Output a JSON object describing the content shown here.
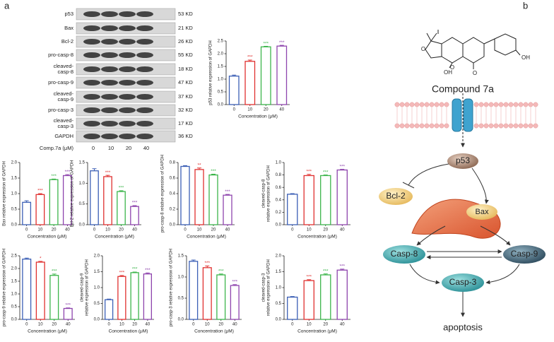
{
  "panels": {
    "a": "a",
    "b": "b"
  },
  "blot": {
    "proteins": [
      [
        "p53"
      ],
      [
        "Bax"
      ],
      [
        "Bcl-2"
      ],
      [
        "pro-casp-8"
      ],
      [
        "cleaved-",
        "casp-8"
      ],
      [
        "pro-casp-9"
      ],
      [
        "cleaved-",
        "casp-9"
      ],
      [
        "pro-casp-3"
      ],
      [
        "cleaved-",
        "casp-3"
      ],
      [
        "GAPDH"
      ]
    ],
    "sizes": [
      "53 KD",
      "21 KD",
      "26 KD",
      "55 KD",
      "18 KD",
      "47 KD",
      "37 KD",
      "32 KD",
      "17 KD",
      "36 KD"
    ],
    "treatment": "Comp.7a (μM)",
    "doses": [
      "0",
      "10",
      "20",
      "40"
    ]
  },
  "pathway": {
    "atoms": [
      "O",
      "O",
      "O",
      "OH",
      "OH"
    ],
    "compound": "Compound 7a",
    "nodes": [
      "p53",
      "Bcl-2",
      "Bax",
      "Casp-8",
      "Casp-9",
      "Casp-3",
      "apoptosis"
    ]
  },
  "chart_data": [
    {
      "type": "bar",
      "ylabel": [
        "p53 relative expression of GAPDH"
      ],
      "xlabel": "Concentration (μM)",
      "categories": [
        "0",
        "10",
        "20",
        "40"
      ],
      "values": [
        1.12,
        1.7,
        2.27,
        2.3
      ],
      "errors": [
        0.04,
        0.05,
        0.02,
        0.03
      ],
      "annotations": [
        null,
        "***",
        "***",
        "***"
      ],
      "colors": [
        "#3b5fb5",
        "#e0302f",
        "#3cb54b",
        "#8e44ad"
      ],
      "ylim": [
        0,
        2.5
      ],
      "yticks": [
        {
          "value": 0,
          "label": "0.0"
        },
        0.5,
        {
          "value": 1,
          "label": "1.0"
        },
        1.5,
        {
          "value": 2,
          "label": "2.0"
        },
        2.5
      ]
    },
    {
      "type": "bar",
      "ylabel": [
        "Bax relative expression of GAPDH"
      ],
      "xlabel": "Concentration (μM)",
      "categories": [
        "0",
        "10",
        "20",
        "40"
      ],
      "values": [
        0.72,
        0.97,
        1.45,
        1.58
      ],
      "errors": [
        0.05,
        0.03,
        0.02,
        0.03
      ],
      "annotations": [
        null,
        "***",
        "***",
        "***"
      ],
      "colors": [
        "#3b5fb5",
        "#e0302f",
        "#3cb54b",
        "#8e44ad"
      ],
      "ylim": [
        0,
        2
      ],
      "yticks": [
        {
          "value": 0,
          "label": "0.0"
        },
        0.5,
        {
          "value": 1,
          "label": "1.0"
        },
        1.5,
        {
          "value": 2,
          "label": "2.0"
        }
      ]
    },
    {
      "type": "bar",
      "ylabel": [
        "Bcl-2 relative expression of GAPDH"
      ],
      "xlabel": "Concentration (μM)",
      "categories": [
        "0",
        "10",
        "20",
        "40"
      ],
      "values": [
        1.3,
        1.16,
        0.8,
        0.44
      ],
      "errors": [
        0.05,
        0.03,
        0.02,
        0.02
      ],
      "annotations": [
        null,
        "***",
        "***",
        "***"
      ],
      "colors": [
        "#3b5fb5",
        "#e0302f",
        "#3cb54b",
        "#8e44ad"
      ],
      "ylim": [
        0,
        1.5
      ],
      "yticks": [
        {
          "value": 0,
          "label": "0.0"
        },
        0.5,
        {
          "value": 1,
          "label": "1.0"
        },
        1.5
      ]
    },
    {
      "type": "bar",
      "ylabel": [
        "pro-casp-8 relative expression of GAPDH"
      ],
      "xlabel": "Concentration (μM)",
      "categories": [
        "0",
        "10",
        "20",
        "40"
      ],
      "values": [
        0.75,
        0.71,
        0.64,
        0.38
      ],
      "errors": [
        0.01,
        0.02,
        0.01,
        0.01
      ],
      "annotations": [
        null,
        "**",
        "***",
        "***"
      ],
      "colors": [
        "#3b5fb5",
        "#e0302f",
        "#3cb54b",
        "#8e44ad"
      ],
      "ylim": [
        0,
        0.8
      ],
      "yticks": [
        {
          "value": 0,
          "label": "0.0"
        },
        0.2,
        0.4,
        0.6,
        0.8
      ]
    },
    {
      "type": "bar",
      "ylabel": [
        "cleaved-casp-8",
        "relative expression of GAPDH"
      ],
      "xlabel": "Concentration (μM)",
      "categories": [
        "0",
        "10",
        "20",
        "40"
      ],
      "values": [
        0.49,
        0.79,
        0.79,
        0.88
      ],
      "errors": [
        0.01,
        0.02,
        0.01,
        0.01
      ],
      "annotations": [
        null,
        "***",
        "***",
        "***"
      ],
      "colors": [
        "#3b5fb5",
        "#e0302f",
        "#3cb54b",
        "#8e44ad"
      ],
      "ylim": [
        0,
        1
      ],
      "yticks": [
        {
          "value": 0,
          "label": "0.0"
        },
        0.2,
        0.4,
        0.6,
        0.8,
        {
          "value": 1,
          "label": "1.0"
        }
      ]
    },
    {
      "type": "bar",
      "ylabel": [
        "pro-casp-9 relative expression of GAPDH"
      ],
      "xlabel": "Concentration (μM)",
      "categories": [
        "0",
        "10",
        "20",
        "40"
      ],
      "values": [
        2.37,
        2.25,
        1.73,
        0.43
      ],
      "errors": [
        0.04,
        0.03,
        0.05,
        0.02
      ],
      "annotations": [
        null,
        "*",
        "***",
        "***"
      ],
      "colors": [
        "#3b5fb5",
        "#e0302f",
        "#3cb54b",
        "#8e44ad"
      ],
      "ylim": [
        0,
        2.5
      ],
      "yticks": [
        {
          "value": 0,
          "label": "0.0"
        },
        0.5,
        {
          "value": 1,
          "label": "1.0"
        },
        1.5,
        {
          "value": 2,
          "label": "2.0"
        },
        2.5
      ]
    },
    {
      "type": "bar",
      "ylabel": [
        "cleaved-casp-9",
        "relative expression of GAPDH"
      ],
      "xlabel": "Concentration (μM)",
      "categories": [
        "0",
        "10",
        "20",
        "40"
      ],
      "values": [
        0.62,
        1.35,
        1.47,
        1.43
      ],
      "errors": [
        0.02,
        0.03,
        0.02,
        0.03
      ],
      "annotations": [
        null,
        "***",
        "***",
        "***"
      ],
      "colors": [
        "#3b5fb5",
        "#e0302f",
        "#3cb54b",
        "#8e44ad"
      ],
      "ylim": [
        0,
        2
      ],
      "yticks": [
        {
          "value": 0,
          "label": "0.0"
        },
        0.5,
        {
          "value": 1,
          "label": "1.0"
        },
        1.5,
        {
          "value": 2,
          "label": "2.0"
        }
      ]
    },
    {
      "type": "bar",
      "ylabel": [
        "pro-casp-3 relative expression of GAPDH"
      ],
      "xlabel": "Concentration (μM)",
      "categories": [
        "0",
        "10",
        "20",
        "40"
      ],
      "values": [
        1.37,
        1.22,
        1.05,
        0.8
      ],
      "errors": [
        0.03,
        0.04,
        0.02,
        0.02
      ],
      "annotations": [
        null,
        "***",
        "***",
        "***"
      ],
      "colors": [
        "#3b5fb5",
        "#e0302f",
        "#3cb54b",
        "#8e44ad"
      ],
      "ylim": [
        0,
        1.5
      ],
      "yticks": [
        {
          "value": 0,
          "label": "0.0"
        },
        0.5,
        {
          "value": 1,
          "label": "1.0"
        },
        1.5
      ]
    },
    {
      "type": "bar",
      "ylabel": [
        "cleaved-casp-3",
        "relative expression of GAPDH"
      ],
      "xlabel": "Concentration (μM)",
      "categories": [
        "0",
        "10",
        "20",
        "40"
      ],
      "values": [
        0.7,
        1.22,
        1.4,
        1.55
      ],
      "errors": [
        0.02,
        0.03,
        0.03,
        0.03
      ],
      "annotations": [
        null,
        "***",
        "***",
        "***"
      ],
      "colors": [
        "#3b5fb5",
        "#e0302f",
        "#3cb54b",
        "#8e44ad"
      ],
      "ylim": [
        0,
        2
      ],
      "yticks": [
        {
          "value": 0,
          "label": "0.0"
        },
        0.5,
        {
          "value": 1,
          "label": "1.0"
        },
        1.5,
        {
          "value": 2,
          "label": "2.0"
        }
      ]
    }
  ]
}
